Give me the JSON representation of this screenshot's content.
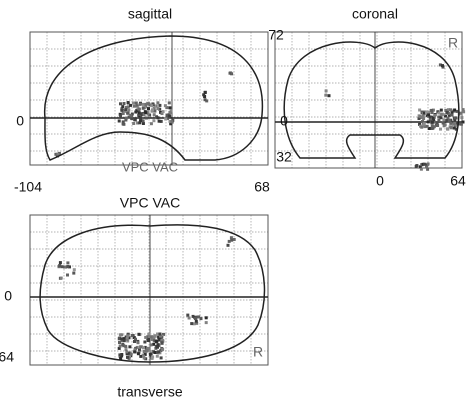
{
  "views": {
    "sagittal": {
      "title": "sagittal",
      "y_zero": "0",
      "x_min": "-104",
      "x_max": "68",
      "overlay": "VPC VAC"
    },
    "coronal": {
      "title": "coronal",
      "y_top": "72",
      "y_zero": "0",
      "y_bottom": "32",
      "x_zero": "0",
      "x_max": "64",
      "orientation": "R"
    },
    "transverse": {
      "title": "transverse",
      "caption": "VPC VAC",
      "y_zero": "0",
      "y_bottom": "64",
      "orientation": "R"
    }
  }
}
